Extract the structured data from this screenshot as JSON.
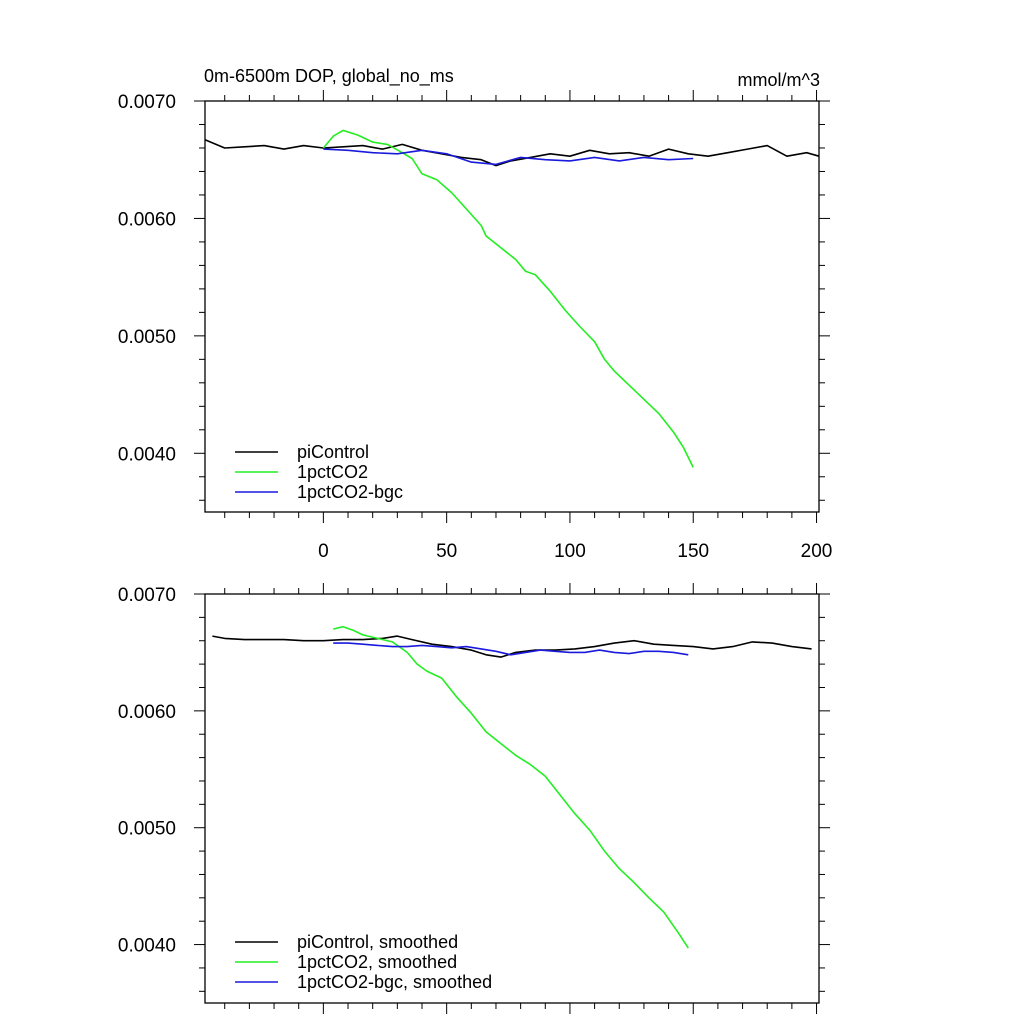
{
  "colors": {
    "piControl": "#000000",
    "1pctCO2": "#22ee22",
    "1pctCO2-bgc": "#1a1adc"
  },
  "chart_data": [
    {
      "type": "line",
      "title": "0m-6500m DOP, global_no_ms",
      "units": "mmol/m^3",
      "xlim": [
        -48,
        201
      ],
      "ylim": [
        0.0035,
        0.007
      ],
      "x_tick_labels": [
        "0",
        "50",
        "100",
        "150",
        "200"
      ],
      "y_tick_labels": [
        "0.0040",
        "0.0050",
        "0.0060",
        "0.0070"
      ],
      "grid": false,
      "legend_position": "bottom-left",
      "series": [
        {
          "name": "piControl",
          "x": [
            -48,
            -40,
            -32,
            -24,
            -16,
            -8,
            0,
            8,
            16,
            24,
            32,
            40,
            48,
            56,
            64,
            70,
            76,
            84,
            92,
            100,
            108,
            116,
            124,
            132,
            140,
            148,
            156,
            164,
            172,
            180,
            188,
            196,
            201
          ],
          "y": [
            0.00667,
            0.0066,
            0.00661,
            0.00662,
            0.00659,
            0.00662,
            0.0066,
            0.00661,
            0.00662,
            0.00659,
            0.00663,
            0.00658,
            0.00655,
            0.00652,
            0.0065,
            0.00645,
            0.00649,
            0.00652,
            0.00655,
            0.00653,
            0.00658,
            0.00655,
            0.00656,
            0.00653,
            0.00659,
            0.00655,
            0.00653,
            0.00656,
            0.00659,
            0.00662,
            0.00653,
            0.00656,
            0.00653
          ]
        },
        {
          "name": "1pctCO2",
          "x": [
            0,
            4,
            8,
            14,
            20,
            26,
            32,
            36,
            40,
            46,
            52,
            58,
            64,
            66,
            72,
            78,
            82,
            86,
            92,
            98,
            104,
            110,
            114,
            118,
            124,
            130,
            136,
            142,
            146,
            150
          ],
          "y": [
            0.0066,
            0.0067,
            0.00675,
            0.00671,
            0.00665,
            0.00663,
            0.00656,
            0.00651,
            0.00638,
            0.00633,
            0.00622,
            0.00608,
            0.00594,
            0.00585,
            0.00575,
            0.00565,
            0.00555,
            0.00552,
            0.00538,
            0.00522,
            0.00508,
            0.00495,
            0.0048,
            0.0047,
            0.00458,
            0.00446,
            0.00434,
            0.00418,
            0.00405,
            0.00388
          ]
        },
        {
          "name": "1pctCO2-bgc",
          "x": [
            0,
            10,
            20,
            30,
            40,
            50,
            60,
            70,
            80,
            90,
            100,
            110,
            120,
            130,
            140,
            150
          ],
          "y": [
            0.00659,
            0.00658,
            0.00656,
            0.00655,
            0.00658,
            0.00655,
            0.00648,
            0.00646,
            0.00652,
            0.0065,
            0.00649,
            0.00652,
            0.00649,
            0.00652,
            0.0065,
            0.00651
          ]
        }
      ]
    },
    {
      "type": "line",
      "title": "",
      "xlim": [
        -48,
        201
      ],
      "ylim": [
        0.0035,
        0.007
      ],
      "y_tick_labels": [
        "0.0040",
        "0.0050",
        "0.0060",
        "0.0070"
      ],
      "grid": false,
      "legend_position": "bottom-left",
      "series": [
        {
          "name": "piControl, smoothed",
          "x": [
            -45,
            -40,
            -32,
            -24,
            -16,
            -8,
            0,
            8,
            16,
            24,
            30,
            36,
            44,
            52,
            60,
            66,
            72,
            78,
            86,
            94,
            102,
            110,
            118,
            126,
            134,
            142,
            150,
            158,
            166,
            174,
            182,
            190,
            198
          ],
          "y": [
            0.00664,
            0.00662,
            0.00661,
            0.00661,
            0.00661,
            0.0066,
            0.0066,
            0.00661,
            0.00661,
            0.00662,
            0.00664,
            0.00661,
            0.00657,
            0.00655,
            0.00652,
            0.00648,
            0.00646,
            0.0065,
            0.00652,
            0.00652,
            0.00653,
            0.00655,
            0.00658,
            0.0066,
            0.00657,
            0.00656,
            0.00655,
            0.00653,
            0.00655,
            0.00659,
            0.00658,
            0.00655,
            0.00653
          ]
        },
        {
          "name": "1pctCO2, smoothed",
          "x": [
            4,
            8,
            12,
            16,
            22,
            28,
            34,
            38,
            42,
            48,
            54,
            60,
            66,
            72,
            78,
            84,
            90,
            96,
            102,
            108,
            114,
            120,
            126,
            132,
            138,
            144,
            148
          ],
          "y": [
            0.0067,
            0.00672,
            0.00669,
            0.00665,
            0.00662,
            0.00659,
            0.0065,
            0.0064,
            0.00634,
            0.00628,
            0.00612,
            0.00598,
            0.00582,
            0.00572,
            0.00562,
            0.00554,
            0.00544,
            0.00528,
            0.00512,
            0.00498,
            0.0048,
            0.00465,
            0.00453,
            0.0044,
            0.00428,
            0.0041,
            0.00397
          ]
        },
        {
          "name": "1pctCO2-bgc, smoothed",
          "x": [
            4,
            10,
            16,
            22,
            28,
            34,
            40,
            46,
            52,
            58,
            64,
            70,
            76,
            82,
            88,
            94,
            100,
            106,
            112,
            118,
            124,
            130,
            136,
            142,
            148
          ],
          "y": [
            0.00658,
            0.00658,
            0.00657,
            0.00656,
            0.00655,
            0.00655,
            0.00656,
            0.00655,
            0.00654,
            0.00655,
            0.00653,
            0.00651,
            0.00648,
            0.0065,
            0.00652,
            0.00651,
            0.0065,
            0.0065,
            0.00652,
            0.0065,
            0.00649,
            0.00651,
            0.00651,
            0.0065,
            0.00648
          ]
        }
      ]
    }
  ]
}
